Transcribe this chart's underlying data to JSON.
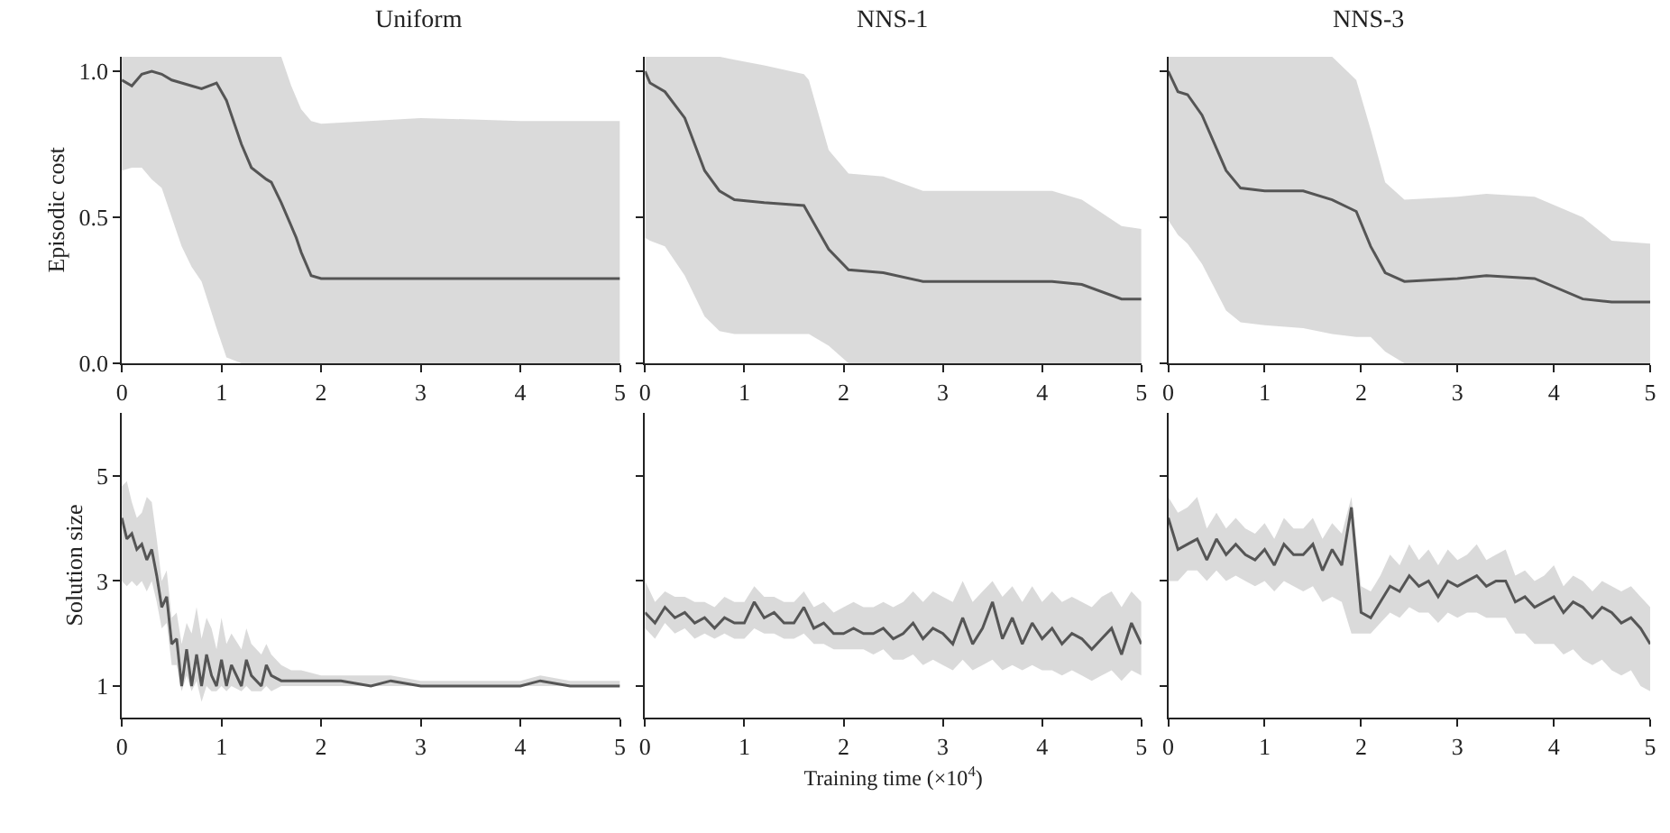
{
  "chart_data": [
    {
      "type": "line",
      "title": "Uniform",
      "ylabel": "Episodic cost",
      "xlim": [
        0,
        5
      ],
      "xticks": [
        0,
        1,
        2,
        3,
        4,
        5
      ],
      "ylim": [
        0,
        1.05
      ],
      "yticks": [
        {
          "value": 0,
          "label": "0.0"
        },
        0.5,
        {
          "value": 1,
          "label": "1.0"
        }
      ],
      "series": [
        {
          "color": "#555555",
          "x": [
            0,
            0.1,
            0.2,
            0.3,
            0.4,
            0.5,
            0.6,
            0.7,
            0.8,
            0.95,
            1.05,
            1.2,
            1.3,
            1.45,
            1.5,
            1.6,
            1.7,
            1.75,
            1.8,
            1.9,
            2.0,
            3,
            4,
            5
          ],
          "values": [
            0.97,
            0.95,
            0.99,
            1.0,
            0.99,
            0.97,
            0.96,
            0.95,
            0.94,
            0.96,
            0.9,
            0.75,
            0.67,
            0.63,
            0.62,
            0.55,
            0.47,
            0.43,
            0.38,
            0.3,
            0.29,
            0.29,
            0.29,
            0.29
          ],
          "lower": [
            0.66,
            0.67,
            0.67,
            0.63,
            0.6,
            0.5,
            0.4,
            0.33,
            0.28,
            0.12,
            0.02,
            0,
            0,
            0,
            0,
            0,
            0,
            0,
            0,
            0,
            0,
            0,
            0,
            0
          ],
          "upper": [
            1.05,
            1.05,
            1.05,
            1.05,
            1.05,
            1.05,
            1.05,
            1.05,
            1.05,
            1.05,
            1.05,
            1.05,
            1.05,
            1.05,
            1.05,
            1.05,
            0.95,
            0.91,
            0.87,
            0.83,
            0.82,
            0.84,
            0.83,
            0.83
          ]
        }
      ]
    },
    {
      "type": "line",
      "title": "NNS-1",
      "xlim": [
        0,
        5
      ],
      "xticks": [
        0,
        1,
        2,
        3,
        4,
        5
      ],
      "ylim": [
        0,
        1.05
      ],
      "yticks": [
        {
          "value": 0,
          "label": null
        },
        {
          "value": 0.5,
          "label": null
        },
        {
          "value": 1,
          "label": null
        }
      ],
      "tick_labels": "x",
      "series": [
        {
          "color": "#555555",
          "x": [
            0,
            0.05,
            0.2,
            0.4,
            0.6,
            0.75,
            0.9,
            1.2,
            1.6,
            1.65,
            1.85,
            2.05,
            2.4,
            2.8,
            3.5,
            4.1,
            4.4,
            4.8,
            5
          ],
          "values": [
            1.0,
            0.96,
            0.93,
            0.84,
            0.66,
            0.59,
            0.56,
            0.55,
            0.54,
            0.51,
            0.39,
            0.32,
            0.31,
            0.28,
            0.28,
            0.28,
            0.27,
            0.22,
            0.22
          ],
          "lower": [
            0.43,
            0.42,
            0.4,
            0.3,
            0.16,
            0.11,
            0.1,
            0.1,
            0.1,
            0.1,
            0.06,
            0,
            0,
            0,
            0,
            0,
            0,
            0,
            0
          ],
          "upper": [
            1.05,
            1.05,
            1.05,
            1.05,
            1.05,
            1.05,
            1.04,
            1.02,
            0.99,
            0.97,
            0.73,
            0.65,
            0.64,
            0.59,
            0.59,
            0.59,
            0.56,
            0.47,
            0.46
          ]
        }
      ]
    },
    {
      "type": "line",
      "title": "NNS-3",
      "xlim": [
        0,
        5
      ],
      "xticks": [
        0,
        1,
        2,
        3,
        4,
        5
      ],
      "ylim": [
        0,
        1.05
      ],
      "yticks": [
        {
          "value": 0,
          "label": null
        },
        {
          "value": 0.5,
          "label": null
        },
        {
          "value": 1,
          "label": null
        }
      ],
      "tick_labels": "x",
      "series": [
        {
          "color": "#555555",
          "x": [
            0,
            0.1,
            0.2,
            0.35,
            0.6,
            0.75,
            1.0,
            1.4,
            1.7,
            1.95,
            2.1,
            2.25,
            2.45,
            3,
            3.3,
            3.8,
            4.3,
            4.6,
            5
          ],
          "values": [
            1.0,
            0.93,
            0.92,
            0.85,
            0.66,
            0.6,
            0.59,
            0.59,
            0.56,
            0.52,
            0.4,
            0.31,
            0.28,
            0.29,
            0.3,
            0.29,
            0.22,
            0.21,
            0.21
          ],
          "lower": [
            0.49,
            0.44,
            0.41,
            0.34,
            0.18,
            0.14,
            0.13,
            0.12,
            0.1,
            0.09,
            0.09,
            0.04,
            0,
            0,
            0,
            0,
            0,
            0,
            0
          ],
          "upper": [
            1.05,
            1.05,
            1.05,
            1.05,
            1.05,
            1.05,
            1.05,
            1.05,
            1.05,
            0.97,
            0.8,
            0.62,
            0.56,
            0.57,
            0.58,
            0.57,
            0.5,
            0.42,
            0.41
          ]
        }
      ]
    },
    {
      "type": "line",
      "ylabel": "Solution size",
      "xlim": [
        0,
        5
      ],
      "xticks": [
        0,
        1,
        2,
        3,
        4,
        5
      ],
      "ylim": [
        0.4,
        6.2
      ],
      "yticks": [
        1,
        3,
        5
      ],
      "series": [
        {
          "color": "#555555",
          "x": [
            0,
            0.05,
            0.1,
            0.15,
            0.2,
            0.25,
            0.3,
            0.35,
            0.4,
            0.45,
            0.5,
            0.55,
            0.6,
            0.65,
            0.7,
            0.75,
            0.8,
            0.85,
            0.9,
            0.95,
            1.0,
            1.05,
            1.1,
            1.2,
            1.25,
            1.3,
            1.4,
            1.45,
            1.5,
            1.6,
            1.7,
            1.8,
            2.0,
            2.2,
            2.5,
            2.7,
            3,
            3.5,
            4,
            4.2,
            4.5,
            5
          ],
          "values": [
            4.2,
            3.8,
            3.9,
            3.6,
            3.7,
            3.4,
            3.6,
            3.1,
            2.5,
            2.7,
            1.8,
            1.9,
            1.0,
            1.7,
            1.0,
            1.6,
            1.0,
            1.6,
            1.2,
            1.0,
            1.5,
            1.0,
            1.4,
            1.0,
            1.5,
            1.2,
            1.0,
            1.4,
            1.2,
            1.1,
            1.1,
            1.1,
            1.1,
            1.1,
            1.0,
            1.1,
            1.0,
            1.0,
            1.0,
            1.1,
            1.0,
            1.0
          ],
          "lower": [
            3.0,
            2.9,
            3.0,
            2.9,
            3.0,
            2.8,
            3.0,
            2.6,
            2.1,
            2.2,
            1.4,
            1.4,
            0.9,
            1.2,
            0.9,
            1.1,
            0.7,
            1.0,
            0.9,
            0.9,
            1.0,
            0.9,
            1.0,
            0.9,
            1.0,
            0.9,
            0.9,
            1.0,
            0.9,
            1.0,
            1.0,
            1.0,
            1.0,
            1.0,
            1.0,
            1.0,
            1.0,
            1.0,
            1.0,
            1.0,
            1.0,
            1.0
          ],
          "upper": [
            4.8,
            4.9,
            4.5,
            4.2,
            4.3,
            4.6,
            4.5,
            3.8,
            3.0,
            3.2,
            2.3,
            2.4,
            1.8,
            2.2,
            2.0,
            2.5,
            1.9,
            2.3,
            2.1,
            1.7,
            2.3,
            1.8,
            2.0,
            1.7,
            2.1,
            1.8,
            1.6,
            1.8,
            1.6,
            1.4,
            1.3,
            1.3,
            1.2,
            1.2,
            1.2,
            1.2,
            1.1,
            1.1,
            1.1,
            1.2,
            1.1,
            1.1
          ]
        }
      ]
    },
    {
      "type": "line",
      "xlabel": "Training time (×10$^{4}$)",
      "xlim": [
        0,
        5
      ],
      "xticks": [
        0,
        1,
        2,
        3,
        4,
        5
      ],
      "ylim": [
        0.4,
        6.2
      ],
      "yticks": [
        {
          "value": 1,
          "label": null
        },
        {
          "value": 3,
          "label": null
        },
        {
          "value": 5,
          "label": null
        }
      ],
      "tick_labels": "x",
      "series": [
        {
          "color": "#555555",
          "x": [
            0,
            0.1,
            0.2,
            0.3,
            0.4,
            0.5,
            0.6,
            0.7,
            0.8,
            0.9,
            1.0,
            1.1,
            1.2,
            1.3,
            1.4,
            1.5,
            1.6,
            1.7,
            1.8,
            1.9,
            2.0,
            2.1,
            2.2,
            2.3,
            2.4,
            2.5,
            2.6,
            2.7,
            2.8,
            2.9,
            3.0,
            3.1,
            3.2,
            3.3,
            3.4,
            3.5,
            3.6,
            3.7,
            3.8,
            3.9,
            4.0,
            4.1,
            4.2,
            4.3,
            4.4,
            4.5,
            4.6,
            4.7,
            4.8,
            4.9,
            5.0
          ],
          "values": [
            2.4,
            2.2,
            2.5,
            2.3,
            2.4,
            2.2,
            2.3,
            2.1,
            2.3,
            2.2,
            2.2,
            2.6,
            2.3,
            2.4,
            2.2,
            2.2,
            2.5,
            2.1,
            2.2,
            2.0,
            2.0,
            2.1,
            2.0,
            2.0,
            2.1,
            1.9,
            2.0,
            2.2,
            1.9,
            2.1,
            2.0,
            1.8,
            2.3,
            1.8,
            2.1,
            2.6,
            1.9,
            2.3,
            1.8,
            2.2,
            1.9,
            2.1,
            1.8,
            2.0,
            1.9,
            1.7,
            1.9,
            2.1,
            1.6,
            2.2,
            1.8
          ],
          "lower": [
            2.1,
            1.9,
            2.2,
            2.0,
            2.1,
            1.9,
            2.0,
            1.9,
            2.0,
            1.9,
            1.9,
            2.1,
            2.0,
            2.0,
            1.9,
            1.9,
            2.0,
            1.8,
            1.8,
            1.7,
            1.7,
            1.7,
            1.7,
            1.6,
            1.7,
            1.5,
            1.5,
            1.6,
            1.4,
            1.5,
            1.4,
            1.3,
            1.5,
            1.3,
            1.4,
            1.5,
            1.3,
            1.4,
            1.3,
            1.4,
            1.3,
            1.3,
            1.2,
            1.3,
            1.2,
            1.1,
            1.2,
            1.3,
            1.1,
            1.3,
            1.2
          ],
          "upper": [
            3.0,
            2.6,
            2.8,
            2.7,
            2.7,
            2.6,
            2.6,
            2.5,
            2.7,
            2.6,
            2.6,
            2.9,
            2.7,
            2.7,
            2.6,
            2.6,
            2.8,
            2.5,
            2.6,
            2.4,
            2.5,
            2.6,
            2.5,
            2.5,
            2.6,
            2.5,
            2.6,
            2.8,
            2.6,
            2.8,
            2.7,
            2.6,
            3.0,
            2.6,
            2.8,
            3.0,
            2.7,
            2.9,
            2.6,
            2.9,
            2.6,
            2.8,
            2.6,
            2.7,
            2.6,
            2.5,
            2.7,
            2.8,
            2.5,
            2.8,
            2.6
          ]
        }
      ]
    },
    {
      "type": "line",
      "xlim": [
        0,
        5
      ],
      "xticks": [
        0,
        1,
        2,
        3,
        4,
        5
      ],
      "ylim": [
        0.4,
        6.2
      ],
      "yticks": [
        {
          "value": 1,
          "label": null
        },
        {
          "value": 3,
          "label": null
        },
        {
          "value": 5,
          "label": null
        }
      ],
      "tick_labels": "x",
      "series": [
        {
          "color": "#555555",
          "x": [
            0,
            0.1,
            0.2,
            0.3,
            0.4,
            0.5,
            0.6,
            0.7,
            0.8,
            0.9,
            1.0,
            1.1,
            1.2,
            1.3,
            1.4,
            1.5,
            1.6,
            1.7,
            1.8,
            1.9,
            2.0,
            2.1,
            2.2,
            2.3,
            2.4,
            2.5,
            2.6,
            2.7,
            2.8,
            2.9,
            3.0,
            3.1,
            3.2,
            3.3,
            3.4,
            3.5,
            3.6,
            3.7,
            3.8,
            3.9,
            4.0,
            4.1,
            4.2,
            4.3,
            4.4,
            4.5,
            4.6,
            4.7,
            4.8,
            4.9,
            5.0
          ],
          "values": [
            4.2,
            3.6,
            3.7,
            3.8,
            3.4,
            3.8,
            3.5,
            3.7,
            3.5,
            3.4,
            3.6,
            3.3,
            3.7,
            3.5,
            3.5,
            3.7,
            3.2,
            3.6,
            3.3,
            4.4,
            2.4,
            2.3,
            2.6,
            2.9,
            2.8,
            3.1,
            2.9,
            3.0,
            2.7,
            3.0,
            2.9,
            3.0,
            3.1,
            2.9,
            3.0,
            3.0,
            2.6,
            2.7,
            2.5,
            2.6,
            2.7,
            2.4,
            2.6,
            2.5,
            2.3,
            2.5,
            2.4,
            2.2,
            2.3,
            2.1,
            1.8
          ],
          "lower": [
            3.0,
            3.0,
            3.2,
            3.2,
            3.0,
            3.2,
            3.0,
            3.1,
            3.0,
            2.9,
            3.0,
            2.8,
            3.0,
            2.9,
            2.8,
            2.9,
            2.6,
            2.7,
            2.6,
            2.0,
            2.0,
            2.0,
            2.2,
            2.4,
            2.3,
            2.5,
            2.4,
            2.4,
            2.2,
            2.4,
            2.3,
            2.4,
            2.4,
            2.3,
            2.3,
            2.3,
            2.0,
            2.0,
            1.8,
            1.8,
            1.8,
            1.6,
            1.7,
            1.5,
            1.4,
            1.5,
            1.3,
            1.2,
            1.3,
            1.0,
            0.9
          ],
          "upper": [
            4.6,
            4.3,
            4.4,
            4.6,
            4.0,
            4.3,
            4.0,
            4.2,
            4.0,
            3.9,
            4.1,
            3.8,
            4.2,
            4.0,
            4.0,
            4.2,
            3.8,
            4.1,
            3.9,
            4.6,
            2.9,
            2.8,
            3.1,
            3.5,
            3.3,
            3.7,
            3.4,
            3.6,
            3.3,
            3.6,
            3.4,
            3.5,
            3.7,
            3.4,
            3.5,
            3.6,
            3.1,
            3.2,
            3.0,
            3.1,
            3.3,
            2.9,
            3.1,
            3.0,
            2.8,
            3.0,
            2.9,
            2.8,
            2.9,
            2.7,
            2.5
          ]
        }
      ]
    }
  ]
}
